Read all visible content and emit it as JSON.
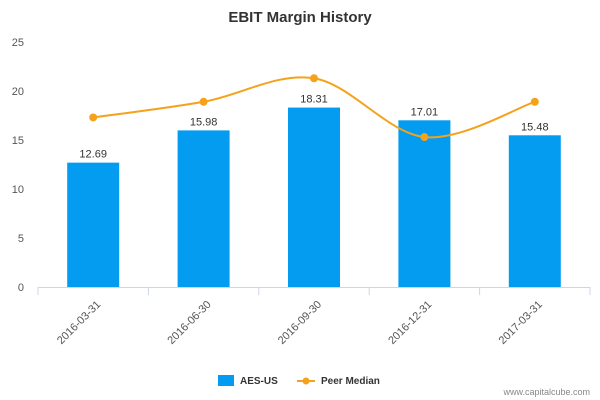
{
  "chart_data": {
    "type": "bar",
    "title": "EBIT Margin History",
    "categories": [
      "2016-03-31",
      "2016-06-30",
      "2016-09-30",
      "2016-12-31",
      "2017-03-31"
    ],
    "series": [
      {
        "name": "AES-US",
        "type": "bar",
        "values": [
          12.69,
          15.98,
          18.31,
          17.01,
          15.48
        ],
        "color": "#049cf0"
      },
      {
        "name": "Peer Median",
        "type": "line",
        "values": [
          17.3,
          18.9,
          21.3,
          15.3,
          18.9
        ],
        "color": "#f5a21b"
      }
    ],
    "data_labels": [
      "12.69",
      "15.98",
      "18.31",
      "17.01",
      "15.48"
    ],
    "yticks": [
      0,
      5,
      10,
      15,
      20,
      25
    ],
    "ylim": [
      0,
      25
    ],
    "grid": false,
    "legend": "bottom-center"
  },
  "credit": "www.capitalcube.com",
  "colors": {
    "axis": "#ccd6eb",
    "text": "#555555"
  }
}
